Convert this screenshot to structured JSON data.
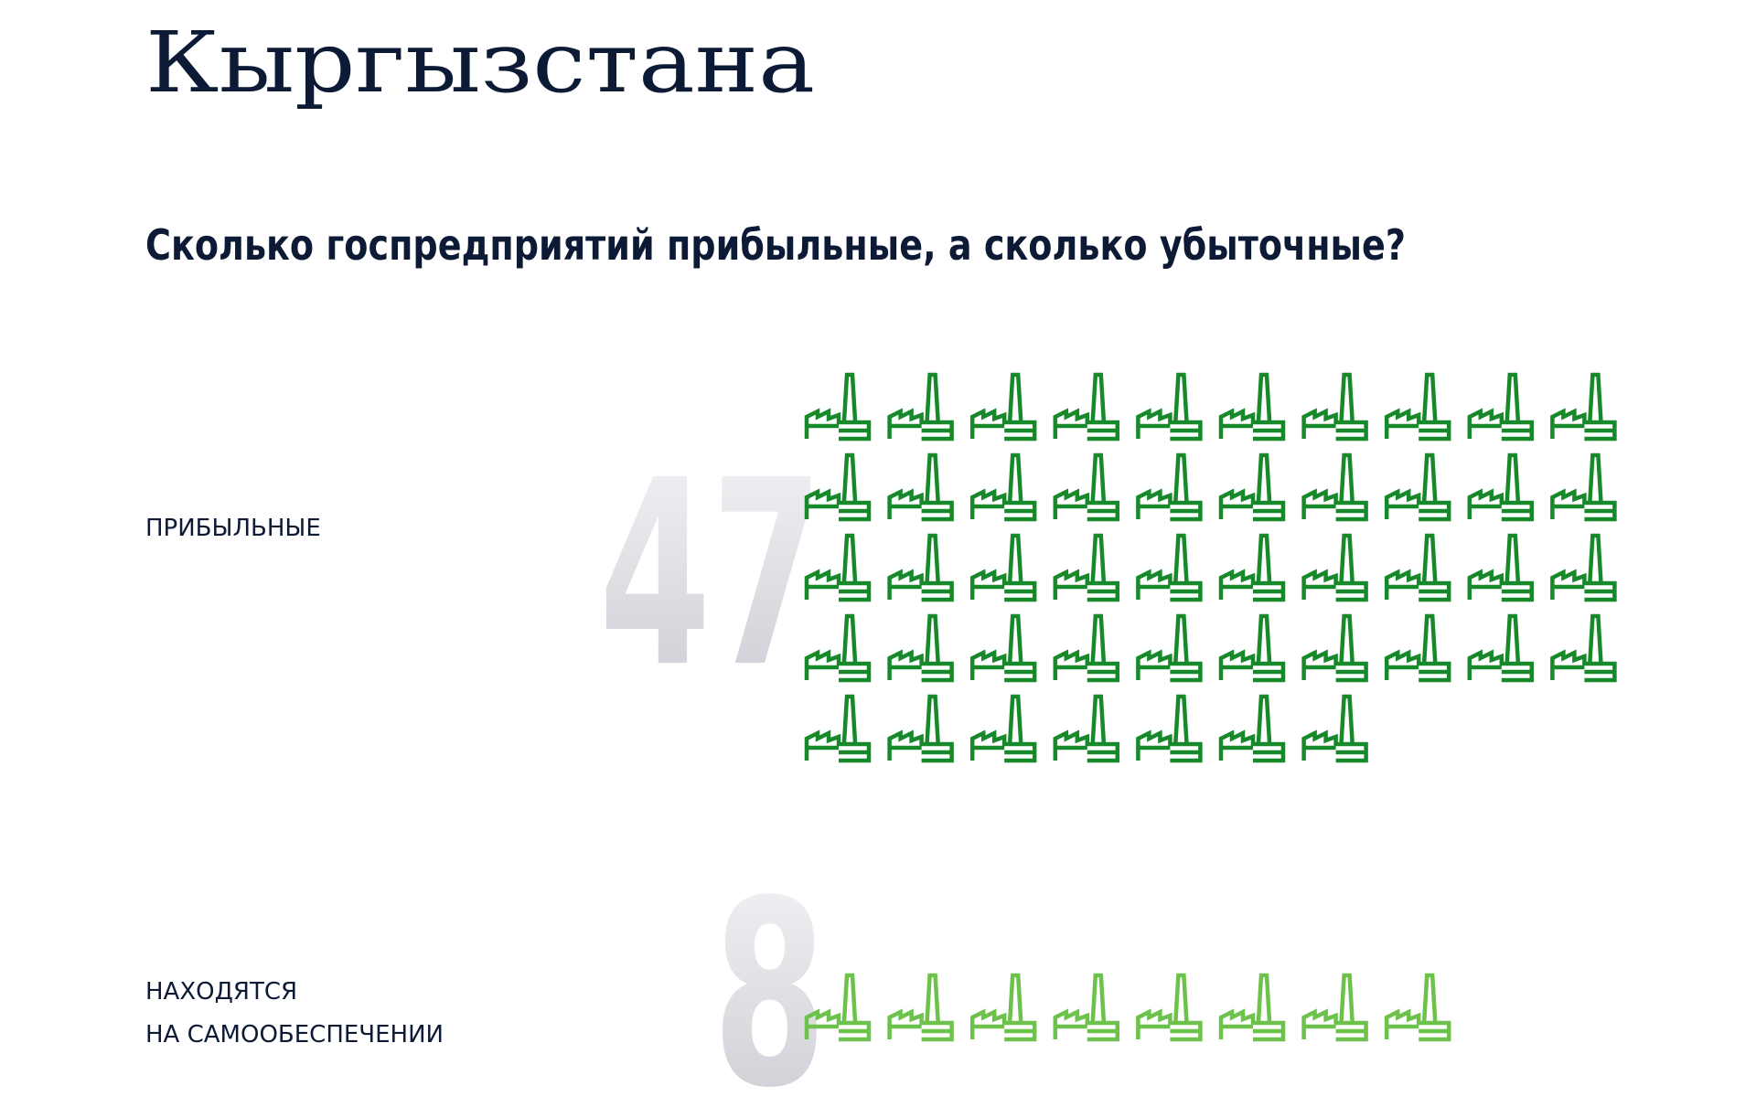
{
  "chart_data": {
    "type": "pictogram",
    "title": "Кыргызстана",
    "subtitle": "Сколько госпредприятий прибыльные, а сколько убыточные?",
    "groups": [
      {
        "label": [
          "ПРИБЫЛЬНЫЕ"
        ],
        "value": 47,
        "color": "#17892b"
      },
      {
        "label": [
          "НАХОДЯТСЯ",
          "НА САМООБЕСПЕЧЕНИИ"
        ],
        "value": 8,
        "color": "#6cc24a"
      }
    ]
  }
}
